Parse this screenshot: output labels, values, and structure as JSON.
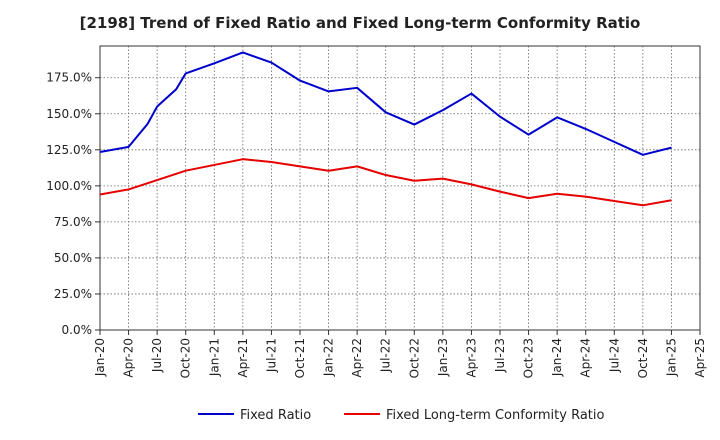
{
  "chart_data": {
    "type": "line",
    "title": "[2198]  Trend of Fixed Ratio and Fixed Long-term Conformity Ratio",
    "xlabel": "",
    "ylabel": "",
    "x_ticks": [
      "Jan-20",
      "Apr-20",
      "Jul-20",
      "Oct-20",
      "Jan-21",
      "Apr-21",
      "Jul-21",
      "Oct-21",
      "Jan-22",
      "Apr-22",
      "Jul-22",
      "Oct-22",
      "Jan-23",
      "Apr-23",
      "Jul-23",
      "Oct-23",
      "Jan-24",
      "Apr-24",
      "Jul-24",
      "Oct-24",
      "Jan-25",
      "Apr-25"
    ],
    "y_ticks": [
      "0.0%",
      "25.0%",
      "50.0%",
      "75.0%",
      "100.0%",
      "125.0%",
      "150.0%",
      "175.0%"
    ],
    "y_tick_values": [
      0,
      25,
      50,
      75,
      100,
      125,
      150,
      175
    ],
    "ylim": [
      0,
      197
    ],
    "grid": true,
    "legend_position": "bottom",
    "series": [
      {
        "name": "Fixed Ratio",
        "color": "#0000cc",
        "x": [
          "Jan-20",
          "Apr-20",
          "Jun-20",
          "Jul-20",
          "Sep-20",
          "Oct-20",
          "Jan-21",
          "Apr-21",
          "Jul-21",
          "Oct-21",
          "Jan-22",
          "Apr-22",
          "Jul-22",
          "Oct-22",
          "Jan-23",
          "Apr-23",
          "Jul-23",
          "Oct-23",
          "Jan-24",
          "Apr-24",
          "Jul-24",
          "Oct-24",
          "Jan-25"
        ],
        "values": [
          123.5,
          127,
          143,
          155,
          167,
          178,
          185,
          192.5,
          185.5,
          173,
          165.5,
          168,
          151,
          142.5,
          152.5,
          164,
          148,
          135.5,
          147.5,
          139.5,
          130.5,
          121.5,
          126.5
        ]
      },
      {
        "name": "Fixed Long-term Conformity Ratio",
        "color": "#e60000",
        "x": [
          "Jan-20",
          "Apr-20",
          "Jul-20",
          "Oct-20",
          "Jan-21",
          "Apr-21",
          "Jul-21",
          "Oct-21",
          "Jan-22",
          "Apr-22",
          "Jul-22",
          "Oct-22",
          "Jan-23",
          "Apr-23",
          "Jul-23",
          "Oct-23",
          "Jan-24",
          "Apr-24",
          "Jul-24",
          "Oct-24",
          "Jan-25"
        ],
        "values": [
          94,
          97.5,
          104,
          110.5,
          114.5,
          118.5,
          116.5,
          113.5,
          110.5,
          113.5,
          107.5,
          103.5,
          105,
          101,
          96,
          91.5,
          94.5,
          92.5,
          89.5,
          86.5,
          90
        ]
      }
    ]
  }
}
